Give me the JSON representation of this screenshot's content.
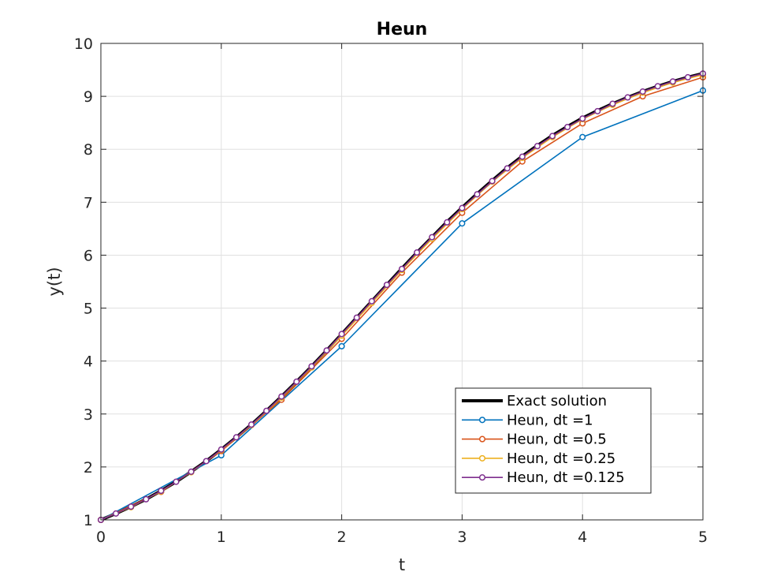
{
  "chart_data": {
    "type": "line",
    "title": "Heun",
    "xlabel": "t",
    "ylabel": "y(t)",
    "xlim": [
      0,
      5
    ],
    "ylim": [
      1,
      10
    ],
    "xticks": [
      0,
      1,
      2,
      3,
      4,
      5
    ],
    "yticks": [
      1,
      2,
      3,
      4,
      5,
      6,
      7,
      8,
      9,
      10
    ],
    "grid": true,
    "legend_position": "bottom-right",
    "series": [
      {
        "name": "Exact solution",
        "color": "#000000",
        "marker": "none",
        "x": [
          0,
          0.125,
          0.25,
          0.375,
          0.5,
          0.625,
          0.75,
          0.875,
          1,
          1.125,
          1.25,
          1.375,
          1.5,
          1.625,
          1.75,
          1.875,
          2,
          2.125,
          2.25,
          2.375,
          2.5,
          2.625,
          2.75,
          2.875,
          3,
          3.125,
          3.25,
          3.375,
          3.5,
          3.625,
          3.75,
          3.875,
          4,
          4.125,
          4.25,
          4.375,
          4.5,
          4.625,
          4.75,
          4.875,
          5
        ],
        "y": [
          1.0,
          1.12,
          1.25,
          1.39,
          1.55,
          1.72,
          1.91,
          2.11,
          2.33,
          2.56,
          2.8,
          3.06,
          3.33,
          3.61,
          3.9,
          4.2,
          4.51,
          4.82,
          5.13,
          5.44,
          5.75,
          6.05,
          6.34,
          6.63,
          6.9,
          7.16,
          7.41,
          7.65,
          7.87,
          8.07,
          8.26,
          8.43,
          8.59,
          8.73,
          8.86,
          8.98,
          9.09,
          9.19,
          9.28,
          9.36,
          9.43
        ]
      },
      {
        "name": "Heun, dt =1",
        "color": "#0072BD",
        "marker": "circle",
        "x": [
          0,
          1,
          2,
          3,
          4,
          5
        ],
        "y": [
          1.0,
          2.22,
          4.28,
          6.6,
          8.23,
          9.11
        ]
      },
      {
        "name": "Heun, dt =0.5",
        "color": "#D95319",
        "marker": "circle",
        "x": [
          0,
          0.5,
          1,
          1.5,
          2,
          2.5,
          3,
          3.5,
          4,
          4.5,
          5
        ],
        "y": [
          1.0,
          1.53,
          2.3,
          3.27,
          4.42,
          5.67,
          6.8,
          7.77,
          8.49,
          9.0,
          9.36
        ]
      },
      {
        "name": "Heun, dt =0.25",
        "color": "#EDB120",
        "marker": "circle",
        "x": [
          0,
          0.25,
          0.5,
          0.75,
          1,
          1.25,
          1.5,
          1.75,
          2,
          2.25,
          2.5,
          2.75,
          3,
          3.25,
          3.5,
          3.75,
          4,
          4.25,
          4.5,
          4.75,
          5
        ],
        "y": [
          1.0,
          1.24,
          1.54,
          1.9,
          2.32,
          2.79,
          3.31,
          3.88,
          4.48,
          5.1,
          5.72,
          6.31,
          6.87,
          7.39,
          7.84,
          8.23,
          8.57,
          8.84,
          9.07,
          9.26,
          9.41
        ]
      },
      {
        "name": "Heun, dt =0.125",
        "color": "#7E2F8E",
        "marker": "circle",
        "x": [
          0,
          0.125,
          0.25,
          0.375,
          0.5,
          0.625,
          0.75,
          0.875,
          1,
          1.125,
          1.25,
          1.375,
          1.5,
          1.625,
          1.75,
          1.875,
          2,
          2.125,
          2.25,
          2.375,
          2.5,
          2.625,
          2.75,
          2.875,
          3,
          3.125,
          3.25,
          3.375,
          3.5,
          3.625,
          3.75,
          3.875,
          4,
          4.125,
          4.25,
          4.375,
          4.5,
          4.625,
          4.75,
          4.875,
          5
        ],
        "y": [
          1.0,
          1.12,
          1.25,
          1.39,
          1.55,
          1.72,
          1.91,
          2.11,
          2.33,
          2.56,
          2.8,
          3.06,
          3.33,
          3.61,
          3.9,
          4.2,
          4.51,
          4.82,
          5.13,
          5.44,
          5.74,
          6.05,
          6.34,
          6.62,
          6.89,
          7.15,
          7.4,
          7.64,
          7.86,
          8.06,
          8.25,
          8.42,
          8.58,
          8.72,
          8.86,
          8.98,
          9.09,
          9.19,
          9.28,
          9.36,
          9.43
        ]
      }
    ]
  }
}
